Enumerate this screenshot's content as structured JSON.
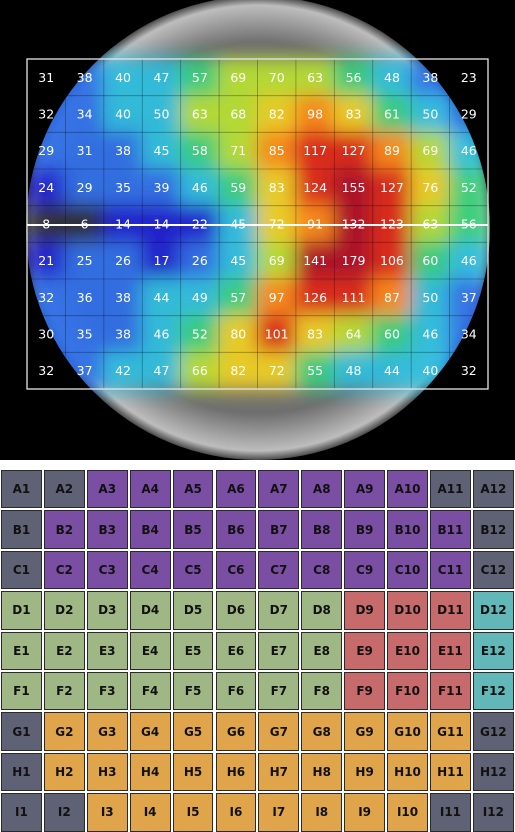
{
  "chart_data": {
    "type": "heatmap",
    "rows": [
      [
        31,
        38,
        40,
        47,
        57,
        69,
        70,
        63,
        56,
        48,
        38,
        23
      ],
      [
        32,
        34,
        40,
        50,
        63,
        68,
        82,
        98,
        83,
        61,
        50,
        29
      ],
      [
        29,
        31,
        38,
        45,
        58,
        71,
        85,
        117,
        127,
        89,
        69,
        46
      ],
      [
        24,
        29,
        35,
        39,
        46,
        59,
        83,
        124,
        155,
        127,
        76,
        52
      ],
      [
        8,
        6,
        14,
        14,
        22,
        45,
        72,
        91,
        132,
        123,
        63,
        56
      ],
      [
        21,
        25,
        26,
        17,
        26,
        45,
        69,
        141,
        179,
        106,
        60,
        46
      ],
      [
        32,
        36,
        38,
        44,
        49,
        57,
        97,
        126,
        111,
        87,
        50,
        37
      ],
      [
        30,
        35,
        38,
        46,
        52,
        80,
        101,
        83,
        64,
        60,
        46,
        34
      ],
      [
        32,
        37,
        42,
        47,
        66,
        82,
        72,
        55,
        48,
        44,
        40,
        32
      ]
    ],
    "color_scale": [
      "#1a1ad0",
      "#2f6ee8",
      "#2ec0e0",
      "#38d27a",
      "#b8e030",
      "#f0d020",
      "#ff8a18",
      "#e02818",
      "#b01020",
      "#e8e8e8"
    ]
  },
  "plate": {
    "row_letters": [
      "A",
      "B",
      "C",
      "D",
      "E",
      "F",
      "G",
      "H",
      "I"
    ],
    "columns": 12,
    "groups": {
      "gray": {
        "color": "#5f6275"
      },
      "purple": {
        "color": "#7a4fa3"
      },
      "green": {
        "color": "#9fb785"
      },
      "red": {
        "color": "#c66a6c"
      },
      "teal": {
        "color": "#62b8b8"
      },
      "orange": {
        "color": "#e0a54a"
      }
    },
    "layout": [
      [
        "gray",
        "gray",
        "purple",
        "purple",
        "purple",
        "purple",
        "purple",
        "purple",
        "purple",
        "purple",
        "gray",
        "gray"
      ],
      [
        "gray",
        "purple",
        "purple",
        "purple",
        "purple",
        "purple",
        "purple",
        "purple",
        "purple",
        "purple",
        "purple",
        "gray"
      ],
      [
        "gray",
        "purple",
        "purple",
        "purple",
        "purple",
        "purple",
        "purple",
        "purple",
        "purple",
        "purple",
        "purple",
        "gray"
      ],
      [
        "green",
        "green",
        "green",
        "green",
        "green",
        "green",
        "green",
        "green",
        "red",
        "red",
        "red",
        "teal"
      ],
      [
        "green",
        "green",
        "green",
        "green",
        "green",
        "green",
        "green",
        "green",
        "red",
        "red",
        "red",
        "teal"
      ],
      [
        "green",
        "green",
        "green",
        "green",
        "green",
        "green",
        "green",
        "green",
        "red",
        "red",
        "red",
        "teal"
      ],
      [
        "gray",
        "orange",
        "orange",
        "orange",
        "orange",
        "orange",
        "orange",
        "orange",
        "orange",
        "orange",
        "orange",
        "gray"
      ],
      [
        "gray",
        "orange",
        "orange",
        "orange",
        "orange",
        "orange",
        "orange",
        "orange",
        "orange",
        "orange",
        "orange",
        "gray"
      ],
      [
        "gray",
        "gray",
        "orange",
        "orange",
        "orange",
        "orange",
        "orange",
        "orange",
        "orange",
        "orange",
        "gray",
        "gray"
      ]
    ]
  }
}
